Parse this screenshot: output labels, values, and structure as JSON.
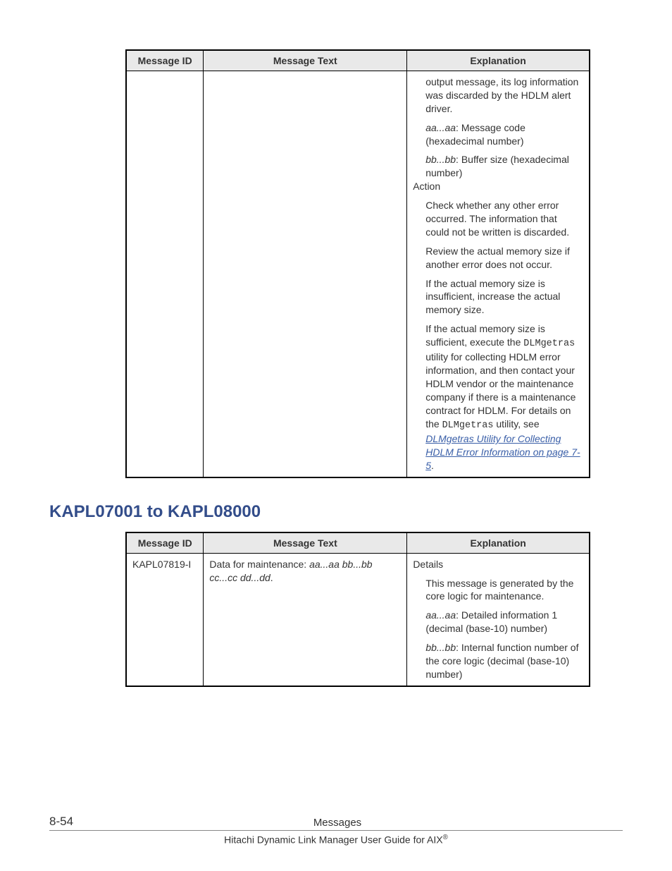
{
  "table1": {
    "headers": {
      "id": "Message ID",
      "text": "Message Text",
      "exp": "Explanation"
    },
    "row": {
      "id": "",
      "text": "",
      "exp": {
        "p1_a": "output message, its log information was discarded by the HDLM alert driver.",
        "p2_var": "aa...aa",
        "p2_rest": ": Message code (hexadecimal number)",
        "p3_var": "bb...bb",
        "p3_rest": ": Buffer size (hexadecimal number)",
        "action_label": "Action",
        "a1": "Check whether any other error occurred. The information that could not be written is discarded.",
        "a2": "Review the actual memory size if another error does not occur.",
        "a3": "If the actual memory size is insufficient, increase the actual memory size.",
        "a4_a": "If the actual memory size is sufficient, execute the ",
        "a4_util1": "DLMgetras",
        "a4_b": " utility for collecting HDLM error information, and then contact your HDLM vendor or the maintenance company if there is a maintenance contract for HDLM. For details on the ",
        "a4_util2": "DLMgetras",
        "a4_c": " utility, see ",
        "a4_link": "DLMgetras Utility for Collecting HDLM Error Information on page 7-5",
        "a4_d": "."
      }
    }
  },
  "section_heading": "KAPL07001 to KAPL08000",
  "table2": {
    "headers": {
      "id": "Message ID",
      "text": "Message Text",
      "exp": "Explanation"
    },
    "row": {
      "id": "KAPL07819-I",
      "text_a": "Data for maintenance: ",
      "text_vars": "aa...aa bb...bb cc...cc dd...dd",
      "text_b": ".",
      "exp": {
        "details_label": "Details",
        "d1": "This message is generated by the core logic for maintenance.",
        "d2_var": "aa...aa",
        "d2_rest": ": Detailed information 1 (decimal (base-10) number)",
        "d3_var": "bb...bb",
        "d3_rest": ": Internal function number of the core logic (decimal (base-10) number)"
      }
    }
  },
  "footer": {
    "page_num": "8-54",
    "section": "Messages",
    "doc_title_a": "Hitachi Dynamic Link Manager User Guide for AIX",
    "doc_title_sup": "®"
  },
  "colors": {
    "heading": "#334d8a",
    "link": "#3a5fa8",
    "header_bg": "#e9e9e9",
    "border": "#000000"
  }
}
